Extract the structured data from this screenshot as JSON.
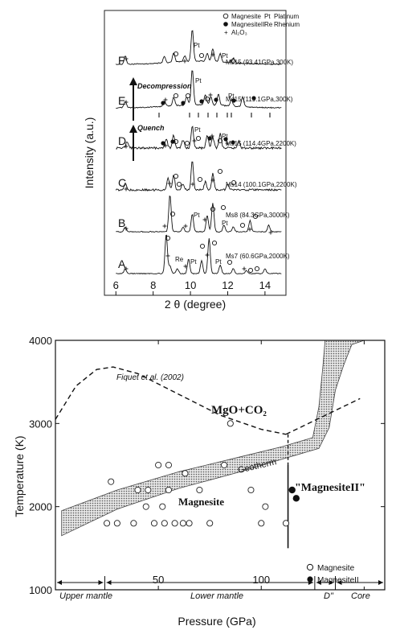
{
  "top": {
    "legend": {
      "magnesite": "Magnesite",
      "magnesite2": "MagnesiteII",
      "al2o3": "Al₂O₃",
      "pt_code": "Pt",
      "pt_name": "Platinum",
      "re_code": "Re",
      "re_name": "Rhenium"
    },
    "ylabel": "Intensity (a.u.)",
    "xlabel": "2 θ  (degree)",
    "xticks": [
      "6",
      "8",
      "10",
      "12",
      "14"
    ],
    "spectra": [
      {
        "letter": "F",
        "sample": "Ms15 (93.41GPa,300K)"
      },
      {
        "letter": "E",
        "sample": "Ms15 (119.1GPa,300K)"
      },
      {
        "letter": "D",
        "sample": "Ms15 (114.4GPa,2200K)"
      },
      {
        "letter": "C",
        "sample": "Ms14 (100.1GPa,2200K)"
      },
      {
        "letter": "B",
        "sample": "Ms8 (84.3GPa,3000K)"
      },
      {
        "letter": "A",
        "sample": "Ms7 (60.6GPa,2000K)"
      }
    ],
    "arrows": {
      "decompression": "Decompression",
      "quench": "Quench"
    },
    "peak_labels": {
      "pt": "Pt",
      "re": "Re"
    }
  },
  "chart_data": {
    "type": "scatter",
    "xlabel": "Pressure (GPa)",
    "ylabel": "Temperature (K)",
    "xlim": [
      0,
      160
    ],
    "ylim": [
      1000,
      4000
    ],
    "xticks": [
      50,
      100,
      150
    ],
    "yticks": [
      1000,
      2000,
      3000,
      4000
    ],
    "series": [
      {
        "name": "Magnesite",
        "marker": "open-circle",
        "points": [
          [
            25,
            1800
          ],
          [
            27,
            2300
          ],
          [
            30,
            1800
          ],
          [
            38,
            1800
          ],
          [
            40,
            2200
          ],
          [
            44,
            2000
          ],
          [
            45,
            2200
          ],
          [
            48,
            1800
          ],
          [
            50,
            2500
          ],
          [
            52,
            2000
          ],
          [
            53,
            1800
          ],
          [
            55,
            2500
          ],
          [
            55,
            2200
          ],
          [
            58,
            1800
          ],
          [
            62,
            1800
          ],
          [
            63,
            2400
          ],
          [
            65,
            1800
          ],
          [
            70,
            2200
          ],
          [
            75,
            1800
          ],
          [
            82,
            2500
          ],
          [
            85,
            3000
          ],
          [
            95,
            2200
          ],
          [
            100,
            1800
          ],
          [
            102,
            2000
          ],
          [
            112,
            1800
          ]
        ]
      },
      {
        "name": "MagnesiteII",
        "marker": "filled-circle",
        "points": [
          [
            115,
            2200
          ],
          [
            117,
            2100
          ]
        ]
      }
    ],
    "annotations": {
      "fiquet": "Fiquet et al. (2002)",
      "mgo_co2": "MgO+CO₂",
      "geotherm": "Geotherm",
      "magnesite_region": "Magnesite",
      "magnesite2_region": "\"MagnesiteII\""
    },
    "regions": [
      {
        "label": "Upper mantle"
      },
      {
        "label": "Lower mantle"
      },
      {
        "label": "D\""
      },
      {
        "label": "Core"
      }
    ]
  }
}
